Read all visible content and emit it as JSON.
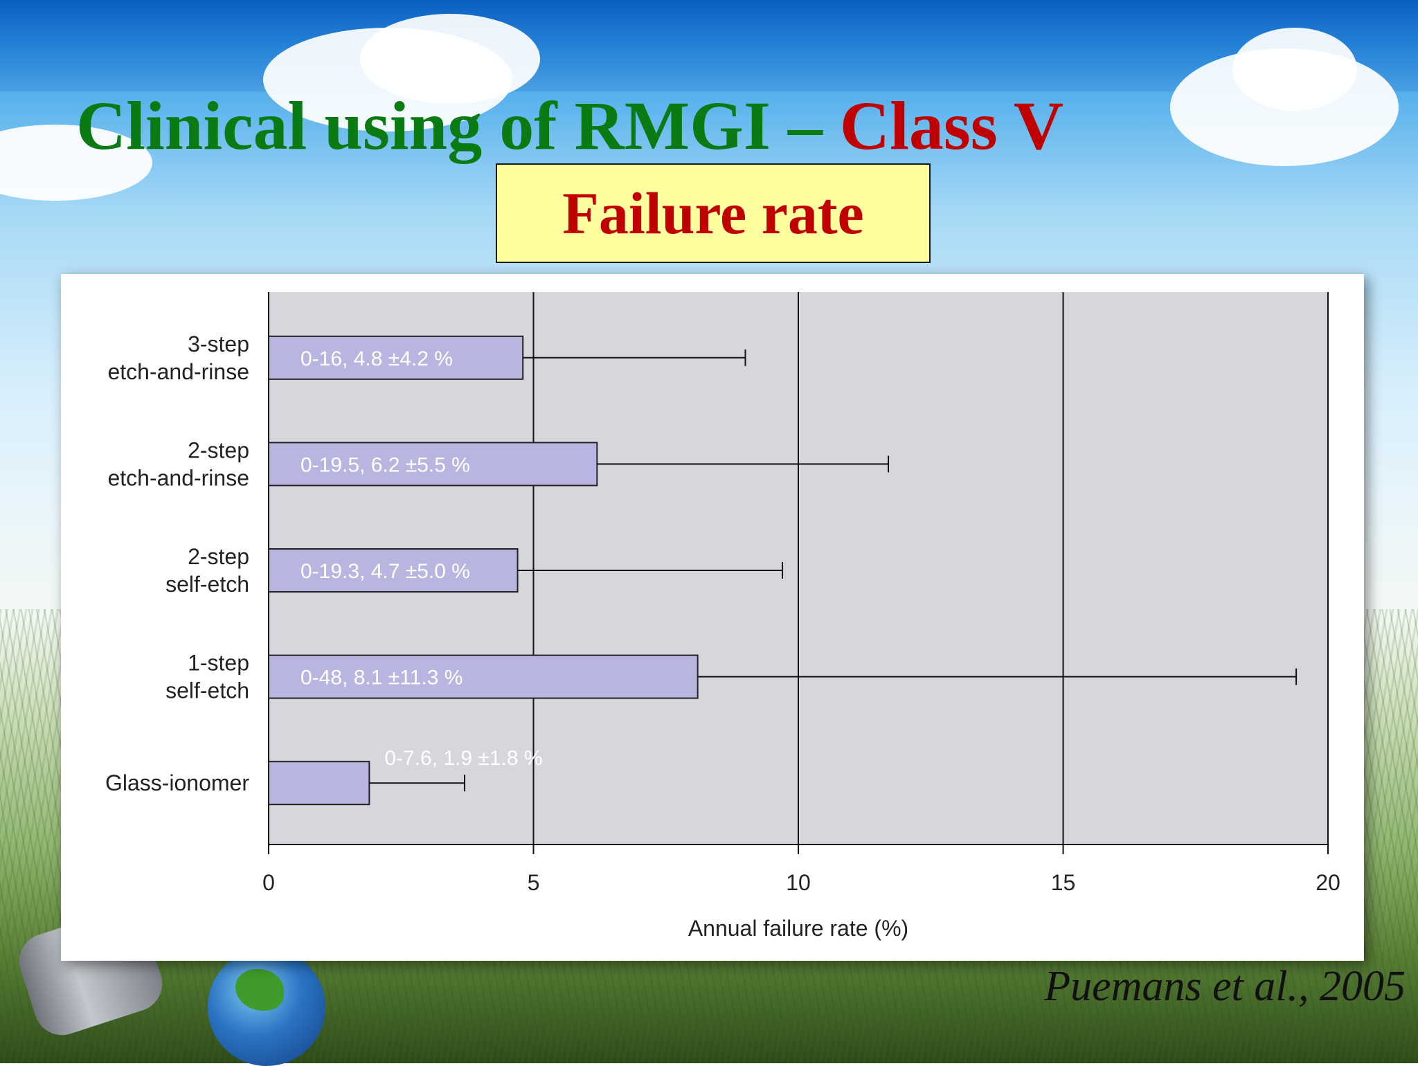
{
  "slide": {
    "title_part1": "Clinical using of RMGI – ",
    "title_part2": "Class V",
    "subtitle": "Failure rate",
    "citation": "Puemans et al., 2005"
  },
  "colors": {
    "title_green": "#0a7a12",
    "title_red": "#c00000",
    "subtitle_box": "#ffffa0",
    "plot_background": "#d8d6dd",
    "bar_fill": "#b8b6e0"
  },
  "chart_data": {
    "type": "bar",
    "orientation": "horizontal",
    "categories": [
      [
        "3-step",
        "etch-and-rinse"
      ],
      [
        "2-step",
        "etch-and-rinse"
      ],
      [
        "2-step",
        "self-etch"
      ],
      [
        "1-step",
        "self-etch"
      ],
      [
        "Glass-ionomer"
      ]
    ],
    "values": [
      4.8,
      6.2,
      4.7,
      8.1,
      1.9
    ],
    "error_upper": [
      9.0,
      11.7,
      9.7,
      19.4,
      3.7
    ],
    "data_labels": [
      "0-16, 4.8 ±4.2 %",
      "0-19.5, 6.2 ±5.5 %",
      "0-19.3, 4.7 ±5.0 %",
      "0-48, 8.1 ±11.3 %",
      "0-7.6, 1.9 ±1.8 %"
    ],
    "xlabel": "Annual failure rate (%)",
    "ylabel": "",
    "xlim": [
      0,
      20
    ],
    "xticks": [
      0,
      5,
      10,
      15,
      20
    ],
    "grid": "vertical at major ticks"
  }
}
